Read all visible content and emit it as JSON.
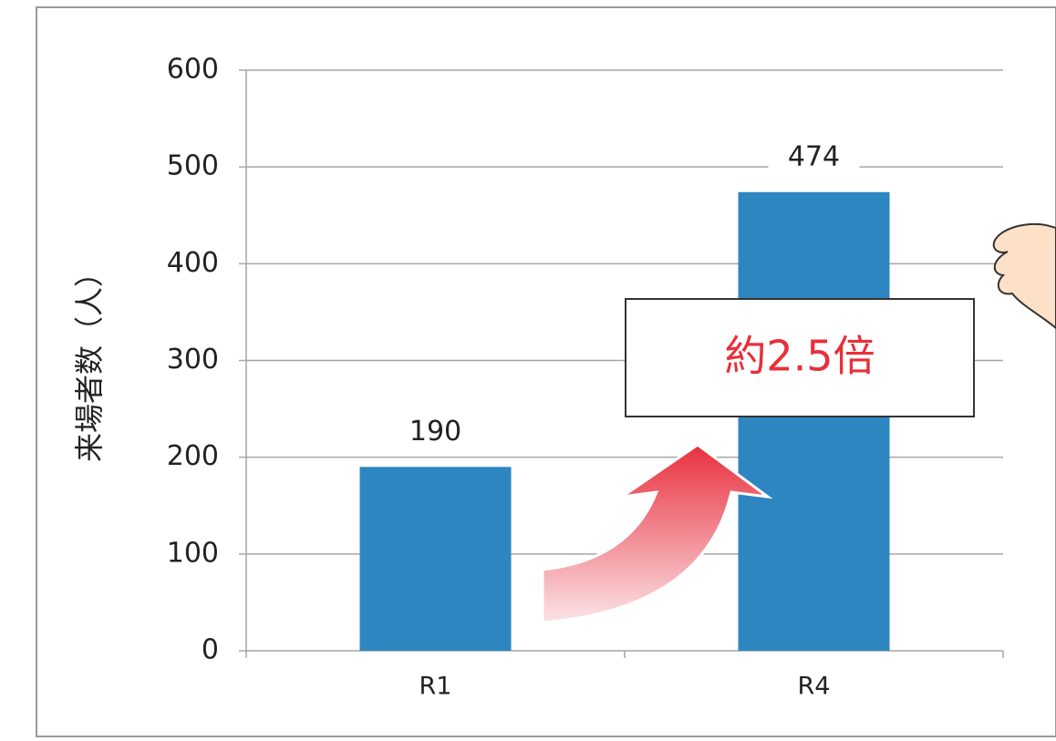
{
  "chart_data": {
    "type": "bar",
    "y_label": "来場者数（人）",
    "annotation": "約2.5倍",
    "categories": [
      "R1",
      "R4"
    ],
    "values": [
      190,
      474
    ],
    "color": "#2e86c1",
    "ylim": [
      0,
      600
    ],
    "yticks": [
      0,
      100,
      200,
      300,
      400,
      500,
      600
    ],
    "grid": true
  }
}
